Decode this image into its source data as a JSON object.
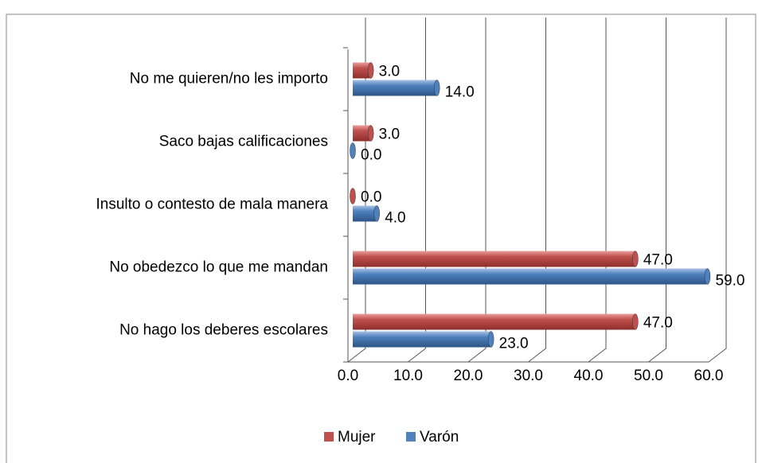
{
  "chart_data": {
    "type": "bar",
    "orientation": "horizontal",
    "categories": [
      "No me quieren/no les importo",
      "Saco bajas calificaciones",
      "Insulto o contesto de mala manera",
      "No obedezco lo que me mandan",
      "No hago los deberes escolares"
    ],
    "series": [
      {
        "name": "Mujer",
        "color": "#c0504d",
        "values": [
          3,
          3,
          0,
          47,
          47
        ],
        "value_labels": [
          "3.0",
          "3.0",
          "0.0",
          "47.0",
          "47.0"
        ]
      },
      {
        "name": "Varón",
        "color": "#4f81bd",
        "values": [
          14,
          0,
          4,
          59,
          23
        ],
        "value_labels": [
          "14.0",
          "0.0",
          "4.0",
          "59.0",
          "23.0"
        ]
      }
    ],
    "xlim": [
      0,
      60
    ],
    "xticks": [
      {
        "value": 0,
        "label": "0.0"
      },
      {
        "value": 10,
        "label": "10.0"
      },
      {
        "value": 20,
        "label": "20.0"
      },
      {
        "value": 30,
        "label": "30.0"
      },
      {
        "value": 40,
        "label": "40.0"
      },
      {
        "value": 50,
        "label": "50.0"
      },
      {
        "value": 60,
        "label": "60.0"
      }
    ],
    "grid": true,
    "legend": "bottom"
  }
}
